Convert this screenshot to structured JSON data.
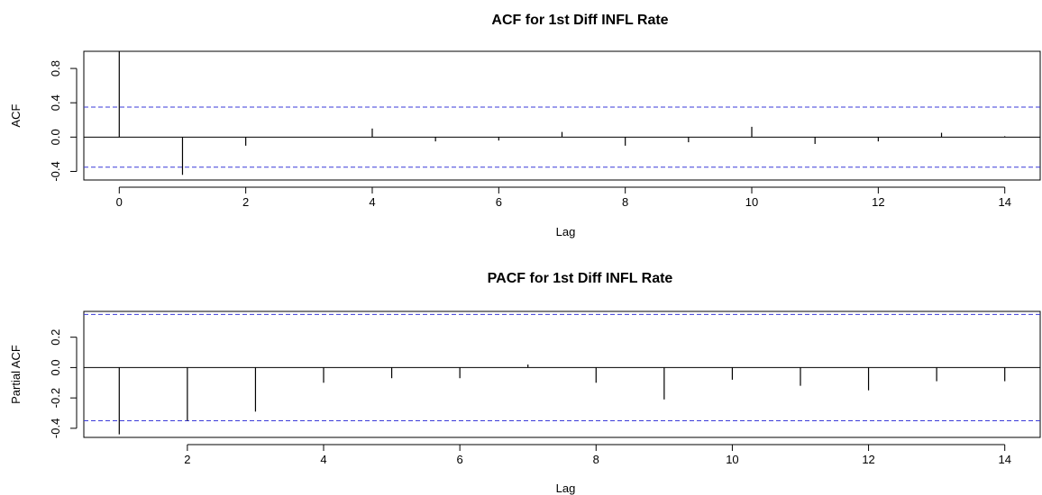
{
  "chart_data": [
    {
      "type": "bar",
      "title": "ACF for 1st Diff INFL Rate",
      "xlabel": "Lag",
      "ylabel": "ACF",
      "xlim": [
        -0.56,
        14.56
      ],
      "ylim": [
        -0.5,
        1.0
      ],
      "xticks": [
        0,
        2,
        4,
        6,
        8,
        10,
        12,
        14
      ],
      "yticks": [
        "-0.4",
        "0.0",
        "0.4",
        "0.8"
      ],
      "conf_bound": 0.35,
      "conf_color": "#3a3ad8",
      "x": [
        0,
        1,
        2,
        3,
        4,
        5,
        6,
        7,
        8,
        9,
        10,
        11,
        12,
        13,
        14
      ],
      "values": [
        1.0,
        -0.44,
        -0.1,
        0.0,
        0.1,
        -0.05,
        -0.04,
        0.06,
        -0.1,
        -0.06,
        0.12,
        -0.08,
        -0.05,
        0.05,
        0.01
      ]
    },
    {
      "type": "bar",
      "title": "PACF for 1st Diff INFL Rate",
      "xlabel": "Lag",
      "ylabel": "Partial ACF",
      "xlim": [
        0.48,
        14.52
      ],
      "ylim": [
        -0.46,
        0.37
      ],
      "xticks": [
        2,
        4,
        6,
        8,
        10,
        12,
        14
      ],
      "yticks": [
        "-0.4",
        "-0.2",
        "0.0",
        "0.2"
      ],
      "conf_bound": 0.35,
      "conf_color": "#3a3ad8",
      "x": [
        1,
        2,
        3,
        4,
        5,
        6,
        7,
        8,
        9,
        10,
        11,
        12,
        13,
        14
      ],
      "values": [
        -0.44,
        -0.35,
        -0.29,
        -0.1,
        -0.07,
        -0.07,
        0.02,
        -0.1,
        -0.21,
        -0.08,
        -0.12,
        -0.15,
        -0.09,
        -0.09
      ]
    }
  ]
}
